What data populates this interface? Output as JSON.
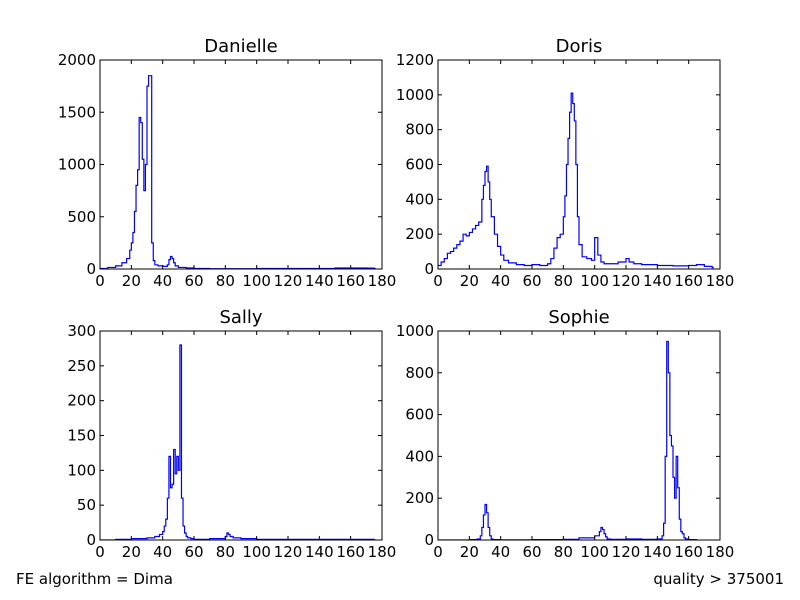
{
  "footer": {
    "left": "FE algorithm = Dima",
    "right": "quality > 375001"
  },
  "colors": {
    "series": "#0000ff",
    "axes": "#000000",
    "background": "#ffffff"
  },
  "chart_data": [
    {
      "type": "line",
      "style": "step histogram",
      "title": "Danielle",
      "xlabel": "",
      "ylabel": "",
      "xlim": [
        0,
        180
      ],
      "ylim": [
        0,
        2000
      ],
      "xticks": [
        0,
        20,
        40,
        60,
        80,
        100,
        120,
        140,
        160,
        180
      ],
      "yticks": [
        0,
        500,
        1000,
        1500,
        2000
      ],
      "grid": false,
      "x": [
        0,
        5,
        10,
        14,
        17,
        19,
        20,
        21,
        22,
        23,
        24,
        25,
        26,
        27,
        28,
        29,
        30,
        31,
        32,
        33,
        34,
        35,
        37,
        40,
        43,
        44,
        45,
        46,
        47,
        48,
        50,
        55,
        60,
        70,
        100,
        150,
        170,
        175
      ],
      "values": [
        5,
        15,
        30,
        60,
        100,
        180,
        250,
        350,
        550,
        800,
        950,
        1450,
        1400,
        1050,
        750,
        1000,
        1750,
        1850,
        1850,
        250,
        80,
        40,
        30,
        25,
        40,
        90,
        120,
        100,
        60,
        30,
        15,
        10,
        5,
        3,
        5,
        10,
        8,
        5
      ]
    },
    {
      "type": "line",
      "style": "step histogram",
      "title": "Doris",
      "xlabel": "",
      "ylabel": "",
      "xlim": [
        0,
        180
      ],
      "ylim": [
        0,
        1200
      ],
      "xticks": [
        0,
        20,
        40,
        60,
        80,
        100,
        120,
        140,
        160,
        180
      ],
      "yticks": [
        0,
        200,
        400,
        600,
        800,
        1000,
        1200
      ],
      "grid": false,
      "x": [
        0,
        2,
        4,
        6,
        8,
        10,
        12,
        14,
        16,
        18,
        20,
        22,
        24,
        26,
        28,
        29,
        30,
        31,
        32,
        33,
        34,
        36,
        38,
        40,
        42,
        45,
        50,
        55,
        60,
        65,
        70,
        72,
        74,
        76,
        78,
        80,
        81,
        82,
        83,
        84,
        85,
        86,
        87,
        88,
        89,
        90,
        92,
        95,
        98,
        100,
        101,
        102,
        104,
        106,
        110,
        115,
        120,
        122,
        125,
        130,
        140,
        150,
        160,
        165,
        170,
        175
      ],
      "values": [
        20,
        40,
        60,
        90,
        100,
        120,
        140,
        160,
        200,
        190,
        210,
        230,
        250,
        270,
        400,
        480,
        560,
        590,
        500,
        400,
        300,
        200,
        130,
        80,
        50,
        35,
        25,
        20,
        25,
        20,
        30,
        60,
        120,
        180,
        200,
        300,
        420,
        600,
        750,
        900,
        1010,
        950,
        850,
        600,
        300,
        140,
        70,
        60,
        50,
        180,
        180,
        80,
        40,
        30,
        30,
        40,
        60,
        40,
        30,
        25,
        20,
        18,
        20,
        25,
        15,
        8
      ]
    },
    {
      "type": "line",
      "style": "step histogram",
      "title": "Sally",
      "xlabel": "",
      "ylabel": "",
      "xlim": [
        0,
        180
      ],
      "ylim": [
        0,
        300
      ],
      "xticks": [
        0,
        20,
        40,
        60,
        80,
        100,
        120,
        140,
        160,
        180
      ],
      "yticks": [
        0,
        50,
        100,
        150,
        200,
        250,
        300
      ],
      "grid": false,
      "x": [
        0,
        10,
        20,
        30,
        35,
        38,
        40,
        41,
        42,
        43,
        44,
        45,
        46,
        47,
        48,
        49,
        50,
        51,
        52,
        53,
        54,
        55,
        56,
        58,
        60,
        70,
        80,
        81,
        82,
        83,
        85,
        90,
        100,
        120,
        150,
        175
      ],
      "values": [
        0,
        1,
        2,
        3,
        5,
        8,
        12,
        20,
        30,
        60,
        120,
        75,
        80,
        130,
        95,
        120,
        100,
        280,
        60,
        20,
        10,
        5,
        3,
        2,
        1,
        2,
        5,
        10,
        8,
        5,
        3,
        2,
        1,
        1,
        1,
        0
      ]
    },
    {
      "type": "line",
      "style": "step histogram",
      "title": "Sophie",
      "xlabel": "",
      "ylabel": "",
      "xlim": [
        0,
        180
      ],
      "ylim": [
        0,
        1000
      ],
      "xticks": [
        0,
        20,
        40,
        60,
        80,
        100,
        120,
        140,
        160,
        180
      ],
      "yticks": [
        0,
        200,
        400,
        600,
        800,
        1000
      ],
      "grid": false,
      "x": [
        0,
        20,
        25,
        27,
        28,
        29,
        30,
        31,
        32,
        33,
        34,
        35,
        40,
        60,
        80,
        90,
        100,
        103,
        104,
        105,
        106,
        107,
        108,
        110,
        120,
        130,
        140,
        143,
        144,
        145,
        146,
        147,
        148,
        149,
        150,
        151,
        152,
        153,
        154,
        155,
        156,
        157,
        158,
        160,
        165
      ],
      "values": [
        0,
        2,
        5,
        20,
        60,
        120,
        170,
        130,
        60,
        20,
        5,
        2,
        1,
        2,
        3,
        10,
        20,
        40,
        60,
        50,
        30,
        15,
        5,
        3,
        5,
        3,
        5,
        20,
        80,
        400,
        950,
        800,
        500,
        450,
        300,
        200,
        400,
        250,
        100,
        40,
        30,
        10,
        5,
        2,
        0
      ]
    }
  ]
}
